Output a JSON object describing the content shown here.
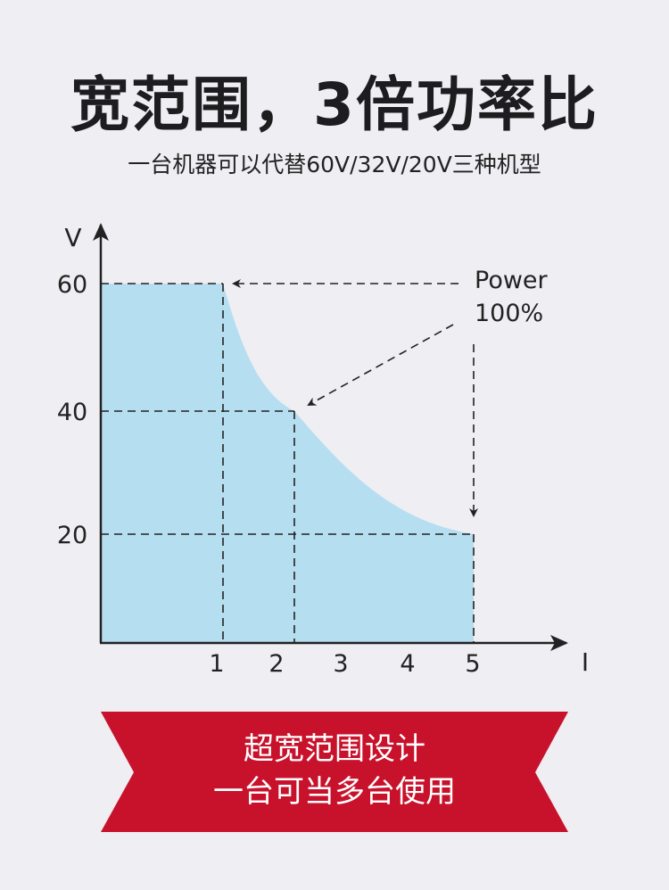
{
  "header": {
    "title": "宽范围，3倍功率比",
    "subtitle": "一台机器可以代替60V/32V/20V三种机型"
  },
  "chart_data": {
    "type": "area",
    "xlabel": "I",
    "ylabel": "V",
    "x_ticks": [
      "1",
      "2",
      "3",
      "4",
      "5"
    ],
    "y_ticks": [
      "20",
      "40",
      "60"
    ],
    "points": [
      [
        0,
        60
      ],
      [
        1,
        60
      ],
      [
        2,
        40
      ],
      [
        5,
        20
      ]
    ],
    "annotation": [
      "Power",
      "100%"
    ],
    "grid": false,
    "fill_color": "#b6def1"
  },
  "banner": {
    "line1": "超宽范围设计",
    "line2": "一台可当多台使用",
    "color": "#c8122c"
  }
}
